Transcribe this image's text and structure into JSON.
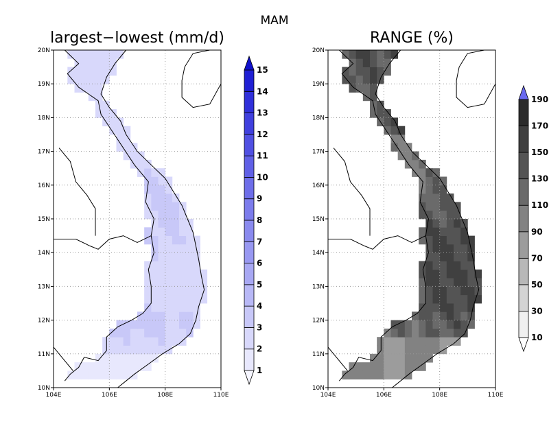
{
  "suptitle": "MAM",
  "map": {
    "lon_ticks": [
      "104E",
      "106E",
      "108E",
      "110E"
    ],
    "lat_ticks": [
      "10N",
      "11N",
      "12N",
      "13N",
      "14N",
      "15N",
      "16N",
      "17N",
      "18N",
      "19N",
      "20N"
    ],
    "lon_range": [
      104,
      110
    ],
    "lat_range": [
      10,
      20
    ]
  },
  "panels": [
    {
      "title": "largest−lowest (mm/d)",
      "colorbar": {
        "labels": [
          "1",
          "2",
          "3",
          "4",
          "5",
          "6",
          "7",
          "8",
          "9",
          "10",
          "11",
          "12",
          "13",
          "14",
          "15"
        ],
        "colors": [
          "#f6f6ff",
          "#e8e8fd",
          "#d8d8fb",
          "#c8c8f8",
          "#b8b8f6",
          "#a8a8f3",
          "#9898f1",
          "#8a8aee",
          "#7c7cec",
          "#6e6ee9",
          "#6060e6",
          "#5050e2",
          "#4040de",
          "#3030da",
          "#2020d4",
          "#1010cc"
        ]
      }
    },
    {
      "title": "RANGE (%)",
      "colorbar": {
        "labels": [
          "10",
          "30",
          "50",
          "70",
          "90",
          "110",
          "130",
          "150",
          "170",
          "190"
        ],
        "colors": [
          "#ffffff",
          "#f0f0f0",
          "#d4d4d4",
          "#b8b8b8",
          "#9c9c9c",
          "#828282",
          "#6a6a6a",
          "#545454",
          "#404040",
          "#2c2c2c",
          "#6a6af0"
        ]
      }
    }
  ]
}
